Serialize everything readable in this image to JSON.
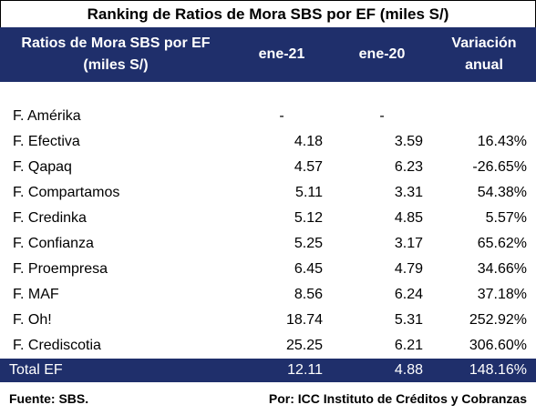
{
  "title": "Ranking de Ratios de Mora SBS por EF (miles S/)",
  "header": {
    "col1": "Ratios de Mora SBS por EF\n(miles S/)",
    "col2": "ene-21",
    "col3": "ene-20",
    "col4": "Variación\nanual"
  },
  "rows": [
    {
      "name": "F. Amérika",
      "v21": "-",
      "v20": "-",
      "var": ""
    },
    {
      "name": "F. Efectiva",
      "v21": "4.18",
      "v20": "3.59",
      "var": "16.43%"
    },
    {
      "name": "F. Qapaq",
      "v21": "4.57",
      "v20": "6.23",
      "var": "-26.65%"
    },
    {
      "name": "F. Compartamos",
      "v21": "5.11",
      "v20": "3.31",
      "var": "54.38%"
    },
    {
      "name": "F. Credinka",
      "v21": "5.12",
      "v20": "4.85",
      "var": "5.57%"
    },
    {
      "name": "F. Confianza",
      "v21": "5.25",
      "v20": "3.17",
      "var": "65.62%"
    },
    {
      "name": "F. Proempresa",
      "v21": "6.45",
      "v20": "4.79",
      "var": "34.66%"
    },
    {
      "name": "F. MAF",
      "v21": "8.56",
      "v20": "6.24",
      "var": "37.18%"
    },
    {
      "name": "F. Oh!",
      "v21": "18.74",
      "v20": "5.31",
      "var": "252.92%"
    },
    {
      "name": "F. Crediscotia",
      "v21": "25.25",
      "v20": "6.21",
      "var": "306.60%"
    }
  ],
  "total": {
    "name": "Total EF",
    "v21": "12.11",
    "v20": "4.88",
    "var": "148.16%"
  },
  "footer": {
    "source": "Fuente: SBS.",
    "author": "Por: ICC Instituto de Créditos y Cobranzas"
  },
  "colors": {
    "header_bg": "#1f2f6b",
    "header_text": "#ffffff"
  },
  "chart_data": {
    "type": "table",
    "title": "Ranking de Ratios de Mora SBS por EF (miles S/)",
    "columns": [
      "Ratios de Mora SBS por EF (miles S/)",
      "ene-21",
      "ene-20",
      "Variación anual"
    ],
    "categories": [
      "F. Amérika",
      "F. Efectiva",
      "F. Qapaq",
      "F. Compartamos",
      "F. Credinka",
      "F. Confianza",
      "F. Proempresa",
      "F. MAF",
      "F. Oh!",
      "F. Crediscotia",
      "Total EF"
    ],
    "series": [
      {
        "name": "ene-21",
        "values": [
          null,
          4.18,
          4.57,
          5.11,
          5.12,
          5.25,
          6.45,
          8.56,
          18.74,
          25.25,
          12.11
        ]
      },
      {
        "name": "ene-20",
        "values": [
          null,
          3.59,
          6.23,
          3.31,
          4.85,
          3.17,
          4.79,
          6.24,
          5.31,
          6.21,
          4.88
        ]
      },
      {
        "name": "Variación anual",
        "values": [
          null,
          16.43,
          -26.65,
          54.38,
          5.57,
          65.62,
          34.66,
          37.18,
          252.92,
          306.6,
          148.16
        ]
      }
    ]
  }
}
